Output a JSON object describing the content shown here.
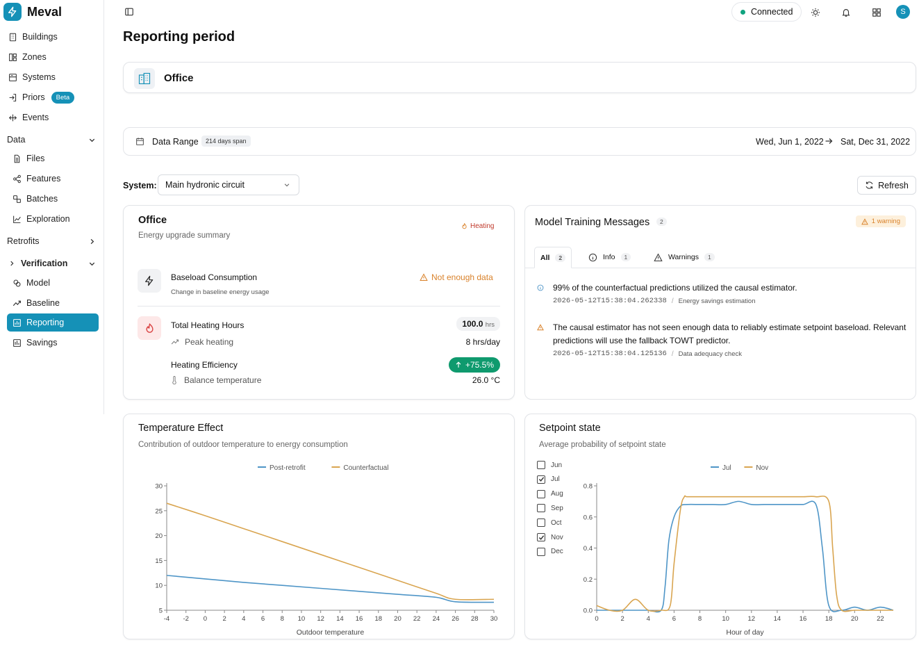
{
  "app": {
    "name": "Meval"
  },
  "sidebar": {
    "items": [
      {
        "label": "Buildings",
        "icon": "building-icon"
      },
      {
        "label": "Zones",
        "icon": "layout-icon"
      },
      {
        "label": "Systems",
        "icon": "server-icon"
      },
      {
        "label": "Priors",
        "icon": "login-icon",
        "badge": "Beta"
      },
      {
        "label": "Events",
        "icon": "move-icon"
      }
    ],
    "data_section": {
      "label": "Data",
      "items": [
        {
          "label": "Files",
          "icon": "file-icon"
        },
        {
          "label": "Features",
          "icon": "share-icon"
        },
        {
          "label": "Batches",
          "icon": "batches-icon"
        },
        {
          "label": "Exploration",
          "icon": "chart-line-icon"
        }
      ]
    },
    "retrofits": {
      "label": "Retrofits"
    },
    "verification": {
      "label": "Verification",
      "items": [
        {
          "label": "Model",
          "icon": "brain-icon"
        },
        {
          "label": "Baseline",
          "icon": "trend-icon"
        },
        {
          "label": "Reporting",
          "icon": "reporting-icon",
          "active": true
        },
        {
          "label": "Savings",
          "icon": "bar-chart-icon"
        }
      ]
    }
  },
  "topbar": {
    "status": "Connected",
    "avatar": "S"
  },
  "page": {
    "title": "Reporting period"
  },
  "building": {
    "name": "Office"
  },
  "data_range": {
    "label": "Data Range",
    "span": "214 days span",
    "start": "Wed, Jun 1, 2022",
    "end": "Sat, Dec 31, 2022"
  },
  "system": {
    "label": "System:",
    "value": "Main hydronic circuit",
    "refresh": "Refresh"
  },
  "summary": {
    "title": "Office",
    "subtitle": "Energy upgrade summary",
    "tag": "Heating",
    "baseload": {
      "title": "Baseload Consumption",
      "subtitle": "Change in baseline energy usage",
      "status": "Not enough data"
    },
    "heating_hours": {
      "title": "Total Heating Hours",
      "value": "100.0",
      "unit": "hrs",
      "sub_label": "Peak heating",
      "sub_value": "8 hrs/day"
    },
    "efficiency": {
      "title": "Heating Efficiency",
      "value": "+75.5%",
      "sub_label": "Balance temperature",
      "sub_value": "26.0 °C"
    }
  },
  "messages": {
    "title": "Model Training Messages",
    "count": "2",
    "warning_badge": "1 warning",
    "tabs": [
      {
        "label": "All",
        "count": "2"
      },
      {
        "label": "Info",
        "count": "1"
      },
      {
        "label": "Warnings",
        "count": "1"
      }
    ],
    "items": [
      {
        "type": "info",
        "text": "99% of the counterfactual predictions utilized the causal estimator.",
        "timestamp": "2026-05-12T15:38:04.262338",
        "source": "Energy savings estimation"
      },
      {
        "type": "warning",
        "text": "The causal estimator has not seen enough data to reliably estimate setpoint baseload. Relevant predictions will use the fallback TOWT predictor.",
        "timestamp": "2026-05-12T15:38:04.125136",
        "source": "Data adequacy check"
      }
    ],
    "separator": "/"
  },
  "colors": {
    "accent": "#1591b7",
    "blue": "#4e95c7",
    "orange": "#d9a550",
    "green": "#0f9a6e",
    "warning": "#d9822b"
  },
  "chart_data": [
    {
      "type": "line",
      "title": "Temperature Effect",
      "subtitle": "Contribution of outdoor temperature to energy consumption",
      "xlabel": "Outdoor temperature",
      "ylabel": "",
      "xlim": [
        -4,
        30
      ],
      "ylim": [
        5,
        30
      ],
      "xticks": [
        -4,
        -2,
        0,
        2,
        4,
        6,
        8,
        10,
        12,
        14,
        16,
        18,
        20,
        22,
        24,
        26,
        28,
        30
      ],
      "yticks": [
        5,
        10,
        15,
        20,
        25,
        30
      ],
      "legend": "top",
      "series": [
        {
          "name": "Post-retrofit",
          "color": "#4e95c7",
          "x": [
            -4,
            0,
            4,
            8,
            12,
            16,
            20,
            24,
            26,
            30
          ],
          "y": [
            12,
            11.3,
            10.6,
            10,
            9.4,
            8.8,
            8.2,
            7.6,
            6.7,
            6.6
          ]
        },
        {
          "name": "Counterfactual",
          "color": "#d9a550",
          "x": [
            -4,
            0,
            4,
            8,
            12,
            16,
            20,
            24,
            26,
            30
          ],
          "y": [
            26.5,
            24,
            21.4,
            18.8,
            16.2,
            13.6,
            11,
            8.4,
            7.2,
            7.2
          ]
        }
      ]
    },
    {
      "type": "line",
      "title": "Setpoint state",
      "subtitle": "Average probability of setpoint state",
      "xlabel": "Hour of day",
      "ylabel": "",
      "xlim": [
        0,
        23
      ],
      "ylim": [
        0,
        0.8
      ],
      "xticks": [
        0,
        2,
        4,
        6,
        8,
        10,
        12,
        14,
        16,
        18,
        20,
        22
      ],
      "yticks": [
        0.0,
        0.2,
        0.4,
        0.6,
        0.8
      ],
      "ytick_labels": [
        "0.0",
        "0.2",
        "0.4",
        "0.6",
        "0.8"
      ],
      "legend": "top",
      "months": [
        {
          "label": "Jun",
          "checked": false
        },
        {
          "label": "Jul",
          "checked": true
        },
        {
          "label": "Aug",
          "checked": false
        },
        {
          "label": "Sep",
          "checked": false
        },
        {
          "label": "Oct",
          "checked": false
        },
        {
          "label": "Nov",
          "checked": true
        },
        {
          "label": "Dec",
          "checked": false
        }
      ],
      "series": [
        {
          "name": "Jul",
          "color": "#4e95c7",
          "x": [
            0,
            1,
            2,
            3,
            4,
            5,
            5.3,
            5.6,
            6,
            6.5,
            7,
            8,
            9,
            10,
            11,
            12,
            13,
            14,
            15,
            16,
            17,
            17.5,
            18,
            19,
            20,
            21,
            22,
            23
          ],
          "y": [
            0,
            0,
            0,
            0,
            0,
            0,
            0.15,
            0.45,
            0.6,
            0.67,
            0.68,
            0.68,
            0.68,
            0.68,
            0.7,
            0.68,
            0.68,
            0.68,
            0.68,
            0.68,
            0.68,
            0.4,
            0.03,
            0,
            0.02,
            0,
            0.02,
            0
          ]
        },
        {
          "name": "Nov",
          "color": "#d9a550",
          "x": [
            0,
            1,
            2,
            3,
            4,
            5,
            5.7,
            6,
            6.5,
            6.8,
            7,
            8,
            9,
            10,
            11,
            12,
            13,
            14,
            15,
            16,
            17,
            18,
            18.3,
            18.6,
            19,
            20,
            21,
            22,
            23
          ],
          "y": [
            0.03,
            0,
            0,
            0.07,
            0,
            0,
            0.03,
            0.3,
            0.65,
            0.73,
            0.73,
            0.73,
            0.73,
            0.73,
            0.73,
            0.73,
            0.73,
            0.73,
            0.73,
            0.73,
            0.73,
            0.7,
            0.4,
            0.1,
            0,
            0,
            0,
            0,
            0
          ]
        }
      ]
    }
  ]
}
